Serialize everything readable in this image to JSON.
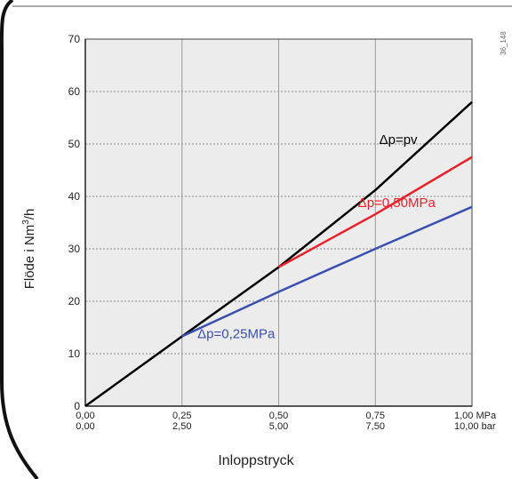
{
  "corner_code": "36_148",
  "chart_data": {
    "type": "line",
    "xlabel": "Inloppstryck",
    "ylabel_main": "Flöde i Nm",
    "ylabel_sup": "3",
    "ylabel_tail": "/h",
    "xlim": [
      0,
      1.0
    ],
    "ylim": [
      0,
      70
    ],
    "y_ticks": [
      0,
      10,
      20,
      30,
      40,
      50,
      60,
      70
    ],
    "x_ticks": [
      0,
      0.25,
      0.5,
      0.75,
      1.0
    ],
    "x_tick_labels_mpa": [
      "0,00",
      "0,25",
      "0,50",
      "0,75",
      "1,00 MPa"
    ],
    "x_tick_labels_bar": [
      "0,00",
      "2,50",
      "5,00",
      "7,50",
      "10,00 bar"
    ],
    "grid": true,
    "series": [
      {
        "name": "Δp=pv",
        "color": "#000000",
        "x": [
          0,
          0.25,
          0.5,
          0.75,
          1.0
        ],
        "y": [
          0,
          13.3,
          26.5,
          41.2,
          58
        ]
      },
      {
        "name": "Δp=0,50MPa",
        "color": "#e8222a",
        "x": [
          0.5,
          0.75,
          1.0
        ],
        "y": [
          26.5,
          36.6,
          47.5
        ]
      },
      {
        "name": "Δp=0,25MPa",
        "color": "#3b4fb0",
        "x": [
          0.25,
          0.5,
          0.75,
          1.0
        ],
        "y": [
          13.3,
          21.8,
          30,
          38
        ]
      }
    ]
  }
}
